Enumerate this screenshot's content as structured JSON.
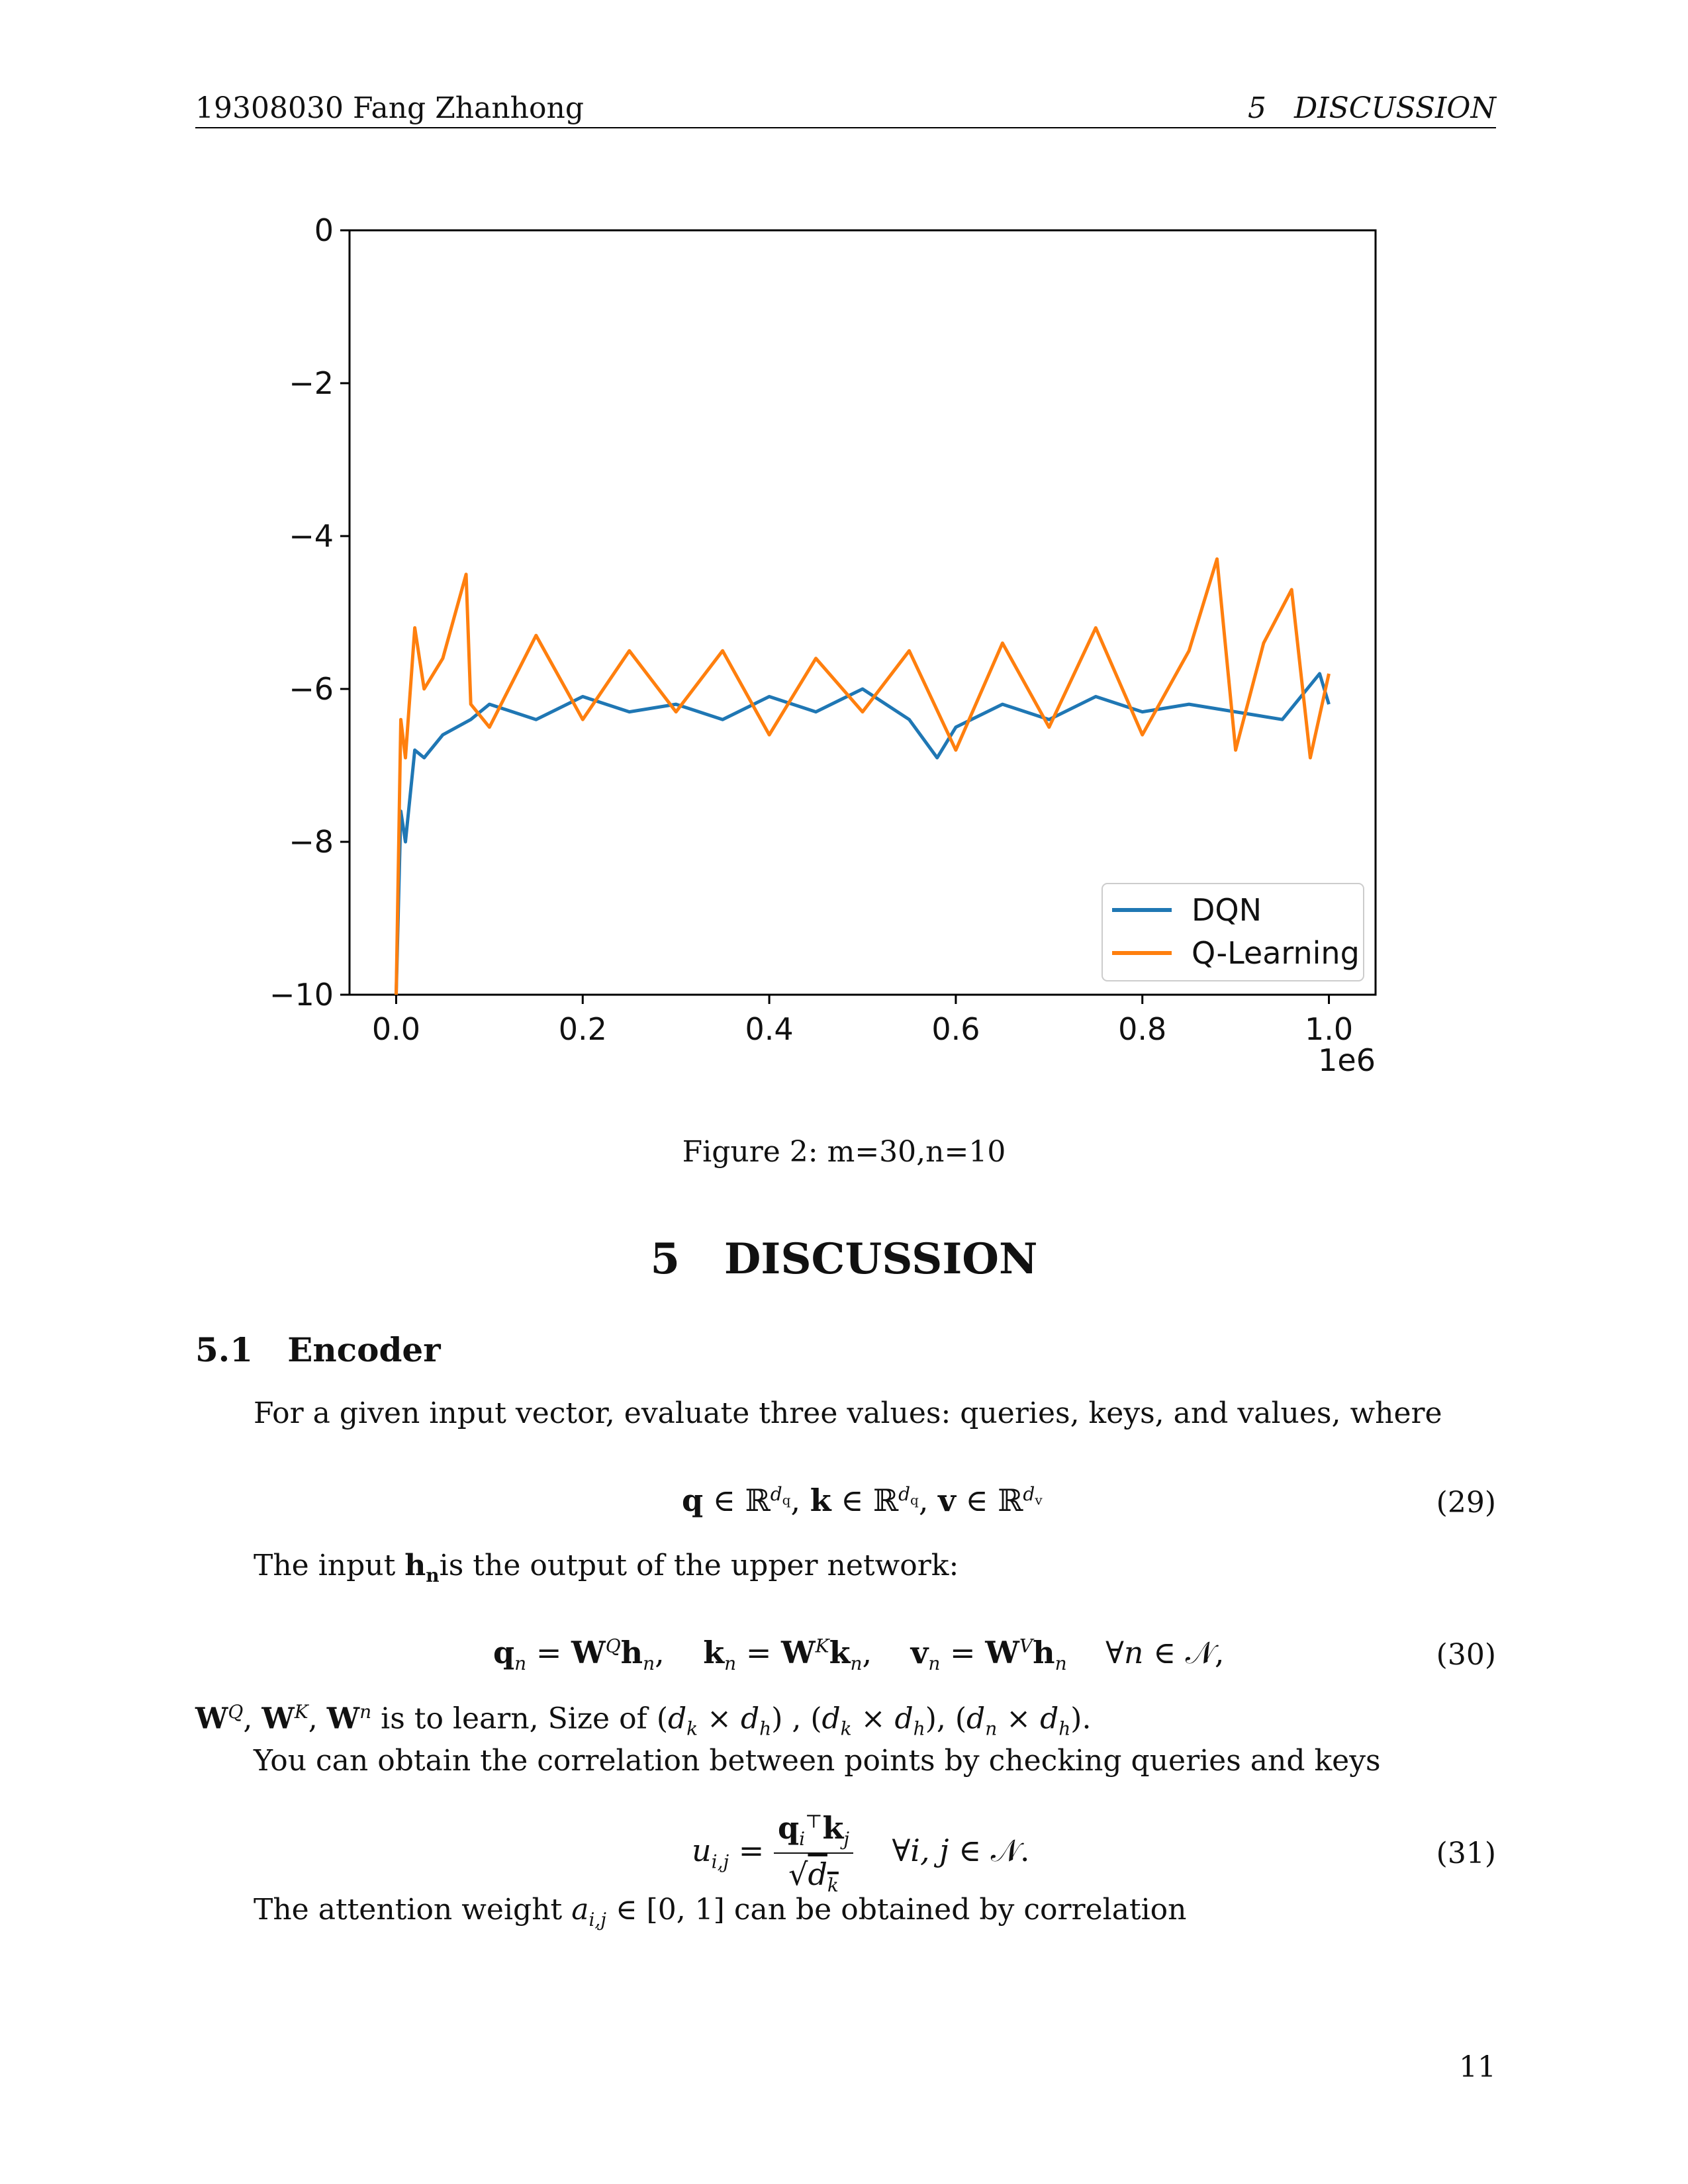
{
  "header": {
    "left": "19308030 Fang Zhanhong",
    "right": "5   DISCUSSION"
  },
  "chart_data": {
    "type": "line",
    "title": "",
    "xlabel": "",
    "ylabel": "",
    "x_offset_label": "1e6",
    "xlim": [
      -0.05,
      1.05
    ],
    "ylim": [
      -10,
      0
    ],
    "xticks": [
      0.0,
      0.2,
      0.4,
      0.6,
      0.8,
      1.0
    ],
    "xtick_labels": [
      "0.0",
      "0.2",
      "0.4",
      "0.6",
      "0.8",
      "1.0"
    ],
    "yticks": [
      0,
      -2,
      -4,
      -6,
      -8,
      -10
    ],
    "ytick_labels": [
      "0",
      "−2",
      "−4",
      "−6",
      "−8",
      "−10"
    ],
    "legend_position": "lower-right",
    "series": [
      {
        "name": "DQN",
        "color": "#1f77b4",
        "x": [
          0.0,
          0.005,
          0.01,
          0.02,
          0.03,
          0.05,
          0.08,
          0.1,
          0.15,
          0.2,
          0.25,
          0.3,
          0.35,
          0.4,
          0.45,
          0.5,
          0.55,
          0.58,
          0.6,
          0.65,
          0.7,
          0.75,
          0.8,
          0.85,
          0.9,
          0.95,
          0.99,
          1.0
        ],
        "y": [
          -10.0,
          -7.6,
          -8.0,
          -6.8,
          -6.9,
          -6.6,
          -6.4,
          -6.2,
          -6.4,
          -6.1,
          -6.3,
          -6.2,
          -6.4,
          -6.1,
          -6.3,
          -6.0,
          -6.4,
          -6.9,
          -6.5,
          -6.2,
          -6.4,
          -6.1,
          -6.3,
          -6.2,
          -6.3,
          -6.4,
          -5.8,
          -6.2
        ]
      },
      {
        "name": "Q-Learning",
        "color": "#ff7f0e",
        "x": [
          0.0,
          0.005,
          0.01,
          0.02,
          0.03,
          0.05,
          0.075,
          0.08,
          0.1,
          0.15,
          0.2,
          0.25,
          0.3,
          0.35,
          0.4,
          0.45,
          0.5,
          0.55,
          0.6,
          0.65,
          0.7,
          0.75,
          0.8,
          0.85,
          0.88,
          0.9,
          0.93,
          0.96,
          0.98,
          1.0
        ],
        "y": [
          -10.0,
          -6.4,
          -6.9,
          -5.2,
          -6.0,
          -5.6,
          -4.5,
          -6.2,
          -6.5,
          -5.3,
          -6.4,
          -5.5,
          -6.3,
          -5.5,
          -6.6,
          -5.6,
          -6.3,
          -5.5,
          -6.8,
          -5.4,
          -6.5,
          -5.2,
          -6.6,
          -5.5,
          -4.3,
          -6.8,
          -5.4,
          -4.7,
          -6.9,
          -5.8
        ]
      }
    ]
  },
  "caption": "Figure 2: m=30,n=10",
  "section_title": "5   DISCUSSION",
  "subsection_title": "5.1   Encoder",
  "p1": "For a given input vector, evaluate three values: queries, keys, and values, where",
  "eq29_num": "(29)",
  "p2_a": "The input ",
  "p2_hn": "h",
  "p2_hn_sub": "n",
  "p2_b": "is the output of the upper network:",
  "eq30_num": "(30)",
  "p3_text": " is to learn, Size of ",
  "p4": "You can obtain the correlation between points by checking queries and keys",
  "eq31_num": "(31)",
  "p5_a": "The attention weight ",
  "p5_b": " can be obtained by correlation",
  "page_number": "11"
}
